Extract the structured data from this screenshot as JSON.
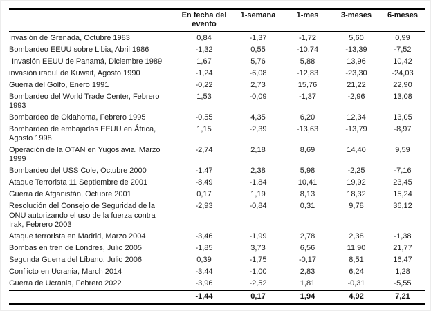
{
  "table": {
    "columns": [
      "En fecha del evento",
      "1-semana",
      "1-mes",
      "3-meses",
      "6-meses"
    ],
    "rows": [
      {
        "event": "Invasión de Grenada, Octubre 1983",
        "values": [
          "0,84",
          "-1,37",
          "-1,72",
          "5,60",
          "0,99"
        ]
      },
      {
        "event": "Bombardeo EEUU sobre Libia, Abril 1986",
        "values": [
          "-1,32",
          "0,55",
          "-10,74",
          "-13,39",
          "-7,52"
        ]
      },
      {
        "event": "Invasión EEUU de Panamá, Diciembre 1989",
        "indent": true,
        "values": [
          "1,67",
          "5,76",
          "5,88",
          "13,96",
          "10,42"
        ]
      },
      {
        "event": "invasión iraquí de Kuwait, Agosto 1990",
        "values": [
          "-1,24",
          "-6,08",
          "-12,83",
          "-23,30",
          "-24,03"
        ]
      },
      {
        "event": "Guerra del Golfo, Enero 1991",
        "values": [
          "-0,22",
          "2,73",
          "15,76",
          "21,22",
          "22,90"
        ]
      },
      {
        "event": "Bombardeo del World Trade Center, Febrero 1993",
        "values": [
          "1,53",
          "-0,09",
          "-1,37",
          "-2,96",
          "13,08"
        ]
      },
      {
        "event": "Bombardeo de Oklahoma, Febrero 1995",
        "values": [
          "-0,55",
          "4,35",
          "6,20",
          "12,34",
          "13,05"
        ]
      },
      {
        "event": "Bombardeo de embajadas EEUU en África, Agosto 1998",
        "values": [
          "1,15",
          "-2,39",
          "-13,63",
          "-13,79",
          "-8,97"
        ]
      },
      {
        "event": "Operación de la OTAN en Yugoslavia, Marzo 1999",
        "values": [
          "-2,74",
          "2,18",
          "8,69",
          "14,40",
          "9,59"
        ]
      },
      {
        "event": "Bombardeo del USS Cole, Octubre 2000",
        "values": [
          "-1,47",
          "2,38",
          "5,98",
          "-2,25",
          "-7,16"
        ]
      },
      {
        "event": "Ataque Terrorista 11 Septiembre de 2001",
        "values": [
          "-8,49",
          "-1,84",
          "10,41",
          "19,92",
          "23,45"
        ]
      },
      {
        "event": "Guerra de Afganistán, Octubre 2001",
        "values": [
          "0,17",
          "1,19",
          "8,13",
          "18,32",
          "15,24"
        ]
      },
      {
        "event": "Resolución del Consejo de Seguridad de la ONU autorizando el uso de la fuerza contra Irak, Febrero 2003",
        "values": [
          "-2,93",
          "-0,84",
          "0,31",
          "9,78",
          "36,12"
        ]
      },
      {
        "event": "Ataque terrorista en Madrid, Marzo 2004",
        "values": [
          "-3,46",
          "-1,99",
          "2,78",
          "2,38",
          "-1,38"
        ]
      },
      {
        "event": "Bombas en tren de Londres, Julio 2005",
        "values": [
          "-1,85",
          "3,73",
          "6,56",
          "11,90",
          "21,77"
        ]
      },
      {
        "event": "Segunda Guerra del Líbano, Julio 2006",
        "values": [
          "0,39",
          "-1,75",
          "-0,17",
          "8,51",
          "16,47"
        ]
      },
      {
        "event": "Conflicto en Ucrania, March 2014",
        "values": [
          "-3,44",
          "-1,00",
          "2,83",
          "6,24",
          "1,28"
        ]
      },
      {
        "event": "Guerra de Ucrania, Febrero 2022",
        "values": [
          "-3,96",
          "-2,52",
          "1,81",
          "-0,31",
          "-5,55"
        ]
      }
    ],
    "footer": {
      "values": [
        "-1,44",
        "0,17",
        "1,94",
        "4,92",
        "7,21"
      ]
    }
  },
  "colors": {
    "rule": "#000000",
    "text": "#1c1c1c"
  }
}
